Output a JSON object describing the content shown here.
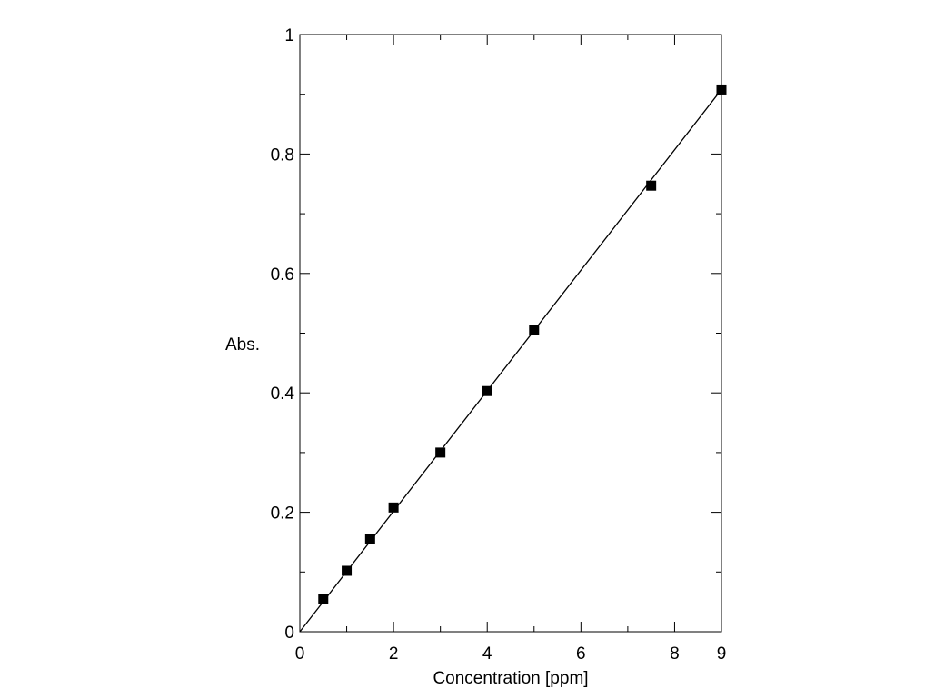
{
  "chart_data": {
    "type": "scatter",
    "title": "",
    "xlabel": "Concentration [ppm]",
    "ylabel": "Abs.",
    "xlim": [
      0,
      9
    ],
    "ylim": [
      0,
      1
    ],
    "x_ticks": [
      {
        "value": 0,
        "label": "0"
      },
      {
        "value": 2,
        "label": "2"
      },
      {
        "value": 4,
        "label": "4"
      },
      {
        "value": 6,
        "label": "6"
      },
      {
        "value": 8,
        "label": "8"
      },
      {
        "value": 9,
        "label": "9"
      }
    ],
    "x_minor_ticks": [
      1,
      3,
      5,
      7
    ],
    "y_ticks": [
      {
        "value": 0,
        "label": "0"
      },
      {
        "value": 0.2,
        "label": "0.2"
      },
      {
        "value": 0.4,
        "label": "0.4"
      },
      {
        "value": 0.6,
        "label": "0.6"
      },
      {
        "value": 0.8,
        "label": "0.8"
      },
      {
        "value": 1,
        "label": "1"
      }
    ],
    "y_minor_ticks": [
      0.1,
      0.3,
      0.5,
      0.7,
      0.9
    ],
    "grid": false,
    "legend": "none",
    "series": [
      {
        "marker": "square",
        "color": "#000000",
        "points": [
          {
            "x": 0.5,
            "y": 0.055
          },
          {
            "x": 1,
            "y": 0.102
          },
          {
            "x": 1.5,
            "y": 0.156
          },
          {
            "x": 2,
            "y": 0.208
          },
          {
            "x": 3,
            "y": 0.3
          },
          {
            "x": 4,
            "y": 0.403
          },
          {
            "x": 5,
            "y": 0.506
          },
          {
            "x": 7.5,
            "y": 0.747
          },
          {
            "x": 9,
            "y": 0.908
          }
        ]
      }
    ],
    "fit_line": {
      "color": "#000000",
      "from": {
        "x": 0,
        "y": 0
      },
      "to": {
        "x": 9,
        "y": 0.908
      }
    }
  }
}
